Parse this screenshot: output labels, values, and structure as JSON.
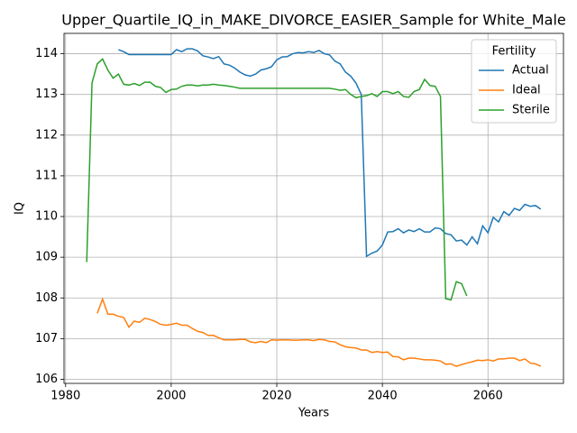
{
  "chart_data": {
    "type": "line",
    "title": "Upper_Quartile_IQ_in_MAKE_DIVORCE_EASIER_Sample for White_Male",
    "xlabel": "Years",
    "ylabel": "IQ",
    "legend_title": "Fertility",
    "legend": "upper right",
    "grid": true,
    "xlim": [
      1979.7,
      2074.3
    ],
    "ylim": [
      105.9,
      114.5
    ],
    "xticks": [
      1980,
      2000,
      2020,
      2040,
      2060
    ],
    "yticks": [
      106,
      107,
      108,
      109,
      110,
      111,
      112,
      113,
      114
    ],
    "x": [
      1984,
      1985,
      1986,
      1987,
      1988,
      1989,
      1990,
      1991,
      1992,
      1993,
      1994,
      1995,
      1996,
      1997,
      1998,
      1999,
      2000,
      2001,
      2002,
      2003,
      2004,
      2005,
      2006,
      2007,
      2008,
      2009,
      2010,
      2011,
      2012,
      2013,
      2014,
      2015,
      2016,
      2017,
      2018,
      2019,
      2020,
      2021,
      2022,
      2023,
      2024,
      2025,
      2026,
      2027,
      2028,
      2029,
      2030,
      2031,
      2032,
      2033,
      2034,
      2035,
      2036,
      2037,
      2038,
      2039,
      2040,
      2041,
      2042,
      2043,
      2044,
      2045,
      2046,
      2047,
      2048,
      2049,
      2050,
      2051,
      2052,
      2053,
      2054,
      2055,
      2056,
      2057,
      2058,
      2059,
      2060,
      2061,
      2062,
      2063,
      2064,
      2065,
      2066,
      2067,
      2068,
      2069,
      2070
    ],
    "series": [
      {
        "name": "Actual",
        "color": "#1f77b4",
        "values": [
          null,
          null,
          null,
          null,
          null,
          null,
          114.1,
          114.05,
          113.98,
          113.98,
          113.98,
          113.98,
          113.98,
          113.98,
          113.98,
          113.98,
          113.98,
          114.1,
          114.05,
          114.12,
          114.12,
          114.07,
          113.95,
          113.92,
          113.88,
          113.93,
          113.75,
          113.72,
          113.65,
          113.55,
          113.48,
          113.45,
          113.5,
          113.6,
          113.63,
          113.68,
          113.85,
          113.92,
          113.93,
          114.0,
          114.03,
          114.02,
          114.05,
          114.03,
          114.08,
          114.0,
          113.97,
          113.82,
          113.75,
          113.55,
          113.45,
          113.28,
          113.0,
          109.02,
          109.1,
          109.15,
          109.3,
          109.62,
          109.63,
          109.7,
          109.6,
          109.67,
          109.63,
          109.7,
          109.62,
          109.62,
          109.72,
          109.7,
          109.58,
          109.55,
          109.4,
          109.42,
          109.3,
          109.5,
          109.33,
          109.77,
          109.6,
          109.98,
          109.87,
          110.12,
          110.03,
          110.2,
          110.15,
          110.3,
          110.25,
          110.27,
          110.18
        ]
      },
      {
        "name": "Ideal",
        "color": "#ff7f0e",
        "values": [
          null,
          null,
          107.62,
          107.97,
          107.6,
          107.6,
          107.55,
          107.52,
          107.28,
          107.43,
          107.4,
          107.5,
          107.47,
          107.42,
          107.35,
          107.33,
          107.35,
          107.38,
          107.33,
          107.33,
          107.25,
          107.18,
          107.15,
          107.08,
          107.08,
          107.02,
          106.97,
          106.97,
          106.97,
          106.98,
          106.98,
          106.92,
          106.9,
          106.93,
          106.9,
          106.97,
          106.96,
          106.97,
          106.97,
          106.96,
          106.96,
          106.97,
          106.97,
          106.95,
          106.98,
          106.97,
          106.93,
          106.92,
          106.85,
          106.8,
          106.78,
          106.77,
          106.72,
          106.72,
          106.66,
          106.68,
          106.66,
          106.67,
          106.56,
          106.55,
          106.48,
          106.52,
          106.52,
          106.5,
          106.48,
          106.48,
          106.47,
          106.45,
          106.37,
          106.38,
          106.32,
          106.36,
          106.4,
          106.43,
          106.47,
          106.46,
          106.48,
          106.45,
          106.5,
          106.5,
          106.52,
          106.52,
          106.46,
          106.5,
          106.4,
          106.38,
          106.32
        ]
      },
      {
        "name": "Sterile",
        "color": "#2ca02c",
        "values": [
          108.88,
          113.28,
          113.75,
          113.87,
          113.6,
          113.4,
          113.5,
          113.25,
          113.23,
          113.27,
          113.22,
          113.3,
          113.3,
          113.2,
          113.17,
          113.05,
          113.12,
          113.13,
          113.2,
          113.23,
          113.23,
          113.21,
          113.23,
          113.23,
          113.25,
          113.23,
          113.22,
          113.2,
          113.18,
          113.15,
          113.15,
          113.15,
          113.15,
          113.15,
          113.15,
          113.15,
          113.15,
          113.15,
          113.15,
          113.15,
          113.15,
          113.15,
          113.15,
          113.15,
          113.15,
          113.15,
          113.15,
          113.13,
          113.1,
          113.12,
          113.0,
          112.92,
          112.95,
          112.97,
          113.02,
          112.95,
          113.07,
          113.07,
          113.02,
          113.07,
          112.95,
          112.93,
          113.07,
          113.12,
          113.37,
          113.22,
          113.2,
          112.95,
          107.98,
          107.95,
          108.4,
          108.35,
          108.05,
          null,
          null,
          null,
          null,
          null,
          null,
          null,
          null,
          null,
          null,
          null,
          null,
          null,
          null
        ]
      }
    ]
  }
}
